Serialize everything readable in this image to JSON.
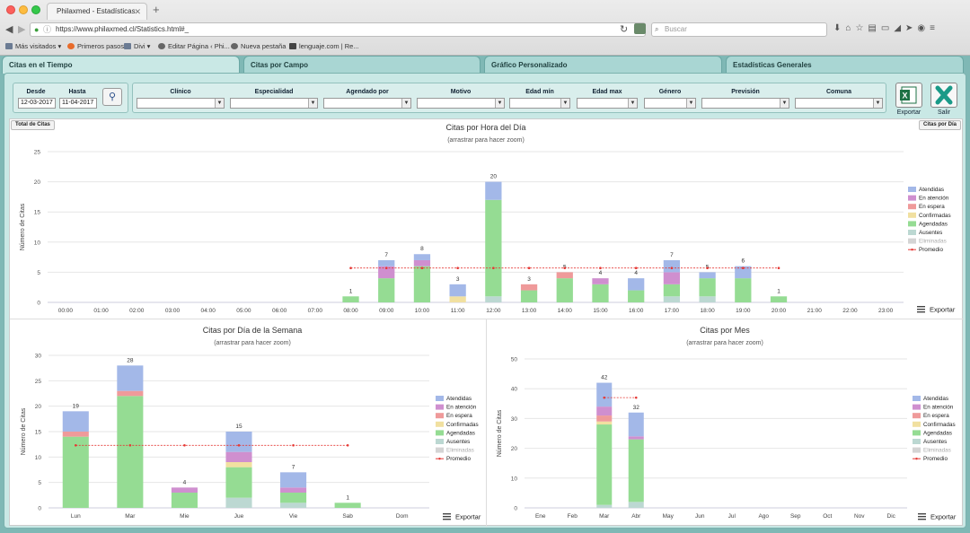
{
  "browser": {
    "tab_title": "Philaxmed - Estadísticas",
    "url": "https://www.philaxmed.cl/Statistics.html#_",
    "search_placeholder": "Buscar",
    "bookmarks": [
      "Más visitados",
      "Primeros pasos",
      "Divi",
      "Editar Página ‹ Phi...",
      "Nueva pestaña",
      "lenguaje.com | Re..."
    ]
  },
  "tabs": [
    "Citas en el Tiempo",
    "Citas por Campo",
    "Gráfico Personalizado",
    "Estadísticas Generales"
  ],
  "filters": {
    "desde_label": "Desde",
    "desde_value": "12-03-2017",
    "hasta_label": "Hasta",
    "hasta_value": "11-04-2017",
    "fields": [
      "Clínico",
      "Especialidad",
      "Agendado por",
      "Motivo",
      "Edad mín",
      "Edad max",
      "Género",
      "Previsión",
      "Comuna"
    ]
  },
  "actions": {
    "exportar": "Exportar",
    "salir": "Salir"
  },
  "buttons": {
    "total_citas": "Total de Citas",
    "citas_por_dia": "Citas por Día",
    "exportar": "Exportar"
  },
  "colors": {
    "Atendidas": "#a3b8e8",
    "En atención": "#cf8fcf",
    "En espera": "#ef9a9a",
    "Confirmadas": "#f1e0a0",
    "Agendadas": "#95dc93",
    "Ausentes": "#bcd8d2",
    "Eliminadas": "#d4d4d4",
    "Promedio": "#e53935"
  },
  "chart_data": [
    {
      "type": "bar",
      "stacked": true,
      "title": "Citas por Hora del Día",
      "subtitle": "(arrastrar para hacer zoom)",
      "ylabel": "Número de Citas",
      "ylim": [
        0,
        25
      ],
      "yticks": [
        0,
        5,
        10,
        15,
        20,
        25
      ],
      "legend_position": "right",
      "categories": [
        "00:00",
        "01:00",
        "02:00",
        "03:00",
        "04:00",
        "05:00",
        "06:00",
        "07:00",
        "08:00",
        "09:00",
        "10:00",
        "11:00",
        "12:00",
        "13:00",
        "14:00",
        "15:00",
        "16:00",
        "17:00",
        "18:00",
        "19:00",
        "20:00",
        "21:00",
        "22:00",
        "23:00"
      ],
      "series": [
        {
          "name": "Eliminadas",
          "values": [
            0,
            0,
            0,
            0,
            0,
            0,
            0,
            0,
            0,
            0,
            0,
            0,
            0,
            0,
            0,
            0,
            0,
            0,
            0,
            0,
            0,
            0,
            0,
            0
          ]
        },
        {
          "name": "Ausentes",
          "values": [
            0,
            0,
            0,
            0,
            0,
            0,
            0,
            0,
            0,
            0,
            0,
            0,
            1,
            0,
            0,
            0,
            0,
            1,
            1,
            0,
            0,
            0,
            0,
            0
          ]
        },
        {
          "name": "Agendadas",
          "values": [
            0,
            0,
            0,
            0,
            0,
            0,
            0,
            0,
            1,
            4,
            6,
            0,
            16,
            2,
            4,
            3,
            2,
            2,
            3,
            4,
            1,
            0,
            0,
            0
          ]
        },
        {
          "name": "Confirmadas",
          "values": [
            0,
            0,
            0,
            0,
            0,
            0,
            0,
            0,
            0,
            0,
            0,
            1,
            0,
            0,
            0,
            0,
            0,
            0,
            0,
            0,
            0,
            0,
            0,
            0
          ]
        },
        {
          "name": "En espera",
          "values": [
            0,
            0,
            0,
            0,
            0,
            0,
            0,
            0,
            0,
            0,
            0,
            0,
            0,
            1,
            1,
            0,
            0,
            0,
            0,
            0,
            0,
            0,
            0,
            0
          ]
        },
        {
          "name": "En atención",
          "values": [
            0,
            0,
            0,
            0,
            0,
            0,
            0,
            0,
            0,
            2,
            1,
            0,
            0,
            0,
            0,
            1,
            0,
            2,
            0,
            0,
            0,
            0,
            0,
            0
          ]
        },
        {
          "name": "Atendidas",
          "values": [
            0,
            0,
            0,
            0,
            0,
            0,
            0,
            0,
            0,
            1,
            1,
            2,
            3,
            0,
            0,
            0,
            2,
            2,
            1,
            2,
            0,
            0,
            0,
            0
          ]
        }
      ],
      "totals": [
        null,
        null,
        null,
        null,
        null,
        null,
        null,
        null,
        1,
        7,
        8,
        3,
        20,
        3,
        5,
        4,
        4,
        7,
        5,
        6,
        1,
        null,
        null,
        null
      ],
      "average": {
        "name": "Promedio",
        "value": 5.7,
        "from": "08:00",
        "to": "20:00"
      }
    },
    {
      "type": "bar",
      "stacked": true,
      "title": "Citas por Día de la Semana",
      "subtitle": "(arrastrar para hacer zoom)",
      "ylabel": "Número de Citas",
      "ylim": [
        0,
        30
      ],
      "yticks": [
        0,
        5,
        10,
        15,
        20,
        25,
        30
      ],
      "legend_position": "right",
      "categories": [
        "Lun",
        "Mar",
        "Mie",
        "Jue",
        "Vie",
        "Sab",
        "Dom"
      ],
      "series": [
        {
          "name": "Eliminadas",
          "values": [
            0,
            0,
            0,
            0,
            0,
            0,
            0
          ]
        },
        {
          "name": "Ausentes",
          "values": [
            0,
            0,
            0,
            2,
            1,
            0,
            0
          ]
        },
        {
          "name": "Agendadas",
          "values": [
            14,
            22,
            3,
            6,
            2,
            1,
            0
          ]
        },
        {
          "name": "Confirmadas",
          "values": [
            0,
            0,
            0,
            1,
            0,
            0,
            0
          ]
        },
        {
          "name": "En espera",
          "values": [
            1,
            1,
            0,
            0,
            0,
            0,
            0
          ]
        },
        {
          "name": "En atención",
          "values": [
            0,
            0,
            1,
            2,
            1,
            0,
            0
          ]
        },
        {
          "name": "Atendidas",
          "values": [
            4,
            5,
            0,
            4,
            3,
            0,
            0
          ]
        }
      ],
      "totals": [
        19,
        28,
        4,
        15,
        7,
        1,
        null
      ],
      "average": {
        "name": "Promedio",
        "value": 12.3,
        "from": "Lun",
        "to": "Sab"
      }
    },
    {
      "type": "bar",
      "stacked": true,
      "title": "Citas por Mes",
      "subtitle": "(arrastrar para hacer zoom)",
      "ylabel": "Número de Citas",
      "ylim": [
        0,
        50
      ],
      "yticks": [
        0,
        10,
        20,
        30,
        40,
        50
      ],
      "legend_position": "right",
      "categories": [
        "Ene",
        "Feb",
        "Mar",
        "Abr",
        "May",
        "Jun",
        "Jul",
        "Ago",
        "Sep",
        "Oct",
        "Nov",
        "Dic"
      ],
      "series": [
        {
          "name": "Eliminadas",
          "values": [
            0,
            0,
            0,
            0,
            0,
            0,
            0,
            0,
            0,
            0,
            0,
            0
          ]
        },
        {
          "name": "Ausentes",
          "values": [
            0,
            0,
            1,
            2,
            0,
            0,
            0,
            0,
            0,
            0,
            0,
            0
          ]
        },
        {
          "name": "Agendadas",
          "values": [
            0,
            0,
            27,
            21,
            0,
            0,
            0,
            0,
            0,
            0,
            0,
            0
          ]
        },
        {
          "name": "Confirmadas",
          "values": [
            0,
            0,
            1,
            0,
            0,
            0,
            0,
            0,
            0,
            0,
            0,
            0
          ]
        },
        {
          "name": "En espera",
          "values": [
            0,
            0,
            2,
            0,
            0,
            0,
            0,
            0,
            0,
            0,
            0,
            0
          ]
        },
        {
          "name": "En atención",
          "values": [
            0,
            0,
            3,
            1,
            0,
            0,
            0,
            0,
            0,
            0,
            0,
            0
          ]
        },
        {
          "name": "Atendidas",
          "values": [
            0,
            0,
            8,
            8,
            0,
            0,
            0,
            0,
            0,
            0,
            0,
            0
          ]
        }
      ],
      "totals": [
        null,
        null,
        42,
        32,
        null,
        null,
        null,
        null,
        null,
        null,
        null,
        null
      ],
      "average": {
        "name": "Promedio",
        "value": 37,
        "from": "Mar",
        "to": "Abr"
      }
    }
  ]
}
